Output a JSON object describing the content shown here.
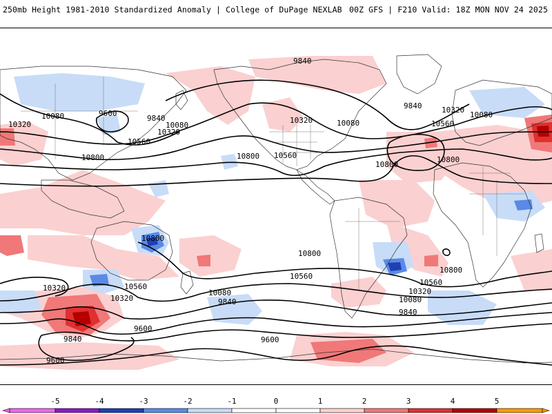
{
  "header": {
    "left": "250mb Height 1981-2010 Standardized Anomaly | College of DuPage NEXLAB",
    "right": "00Z GFS | F210 Valid: 18Z MON NOV 24 2025"
  },
  "colors": {
    "neg5": "#ee66ee",
    "neg4": "#8a1ac4",
    "neg3": "#1f3fb4",
    "neg2": "#5a8ae6",
    "neg1": "#c8dcf8",
    "neutral": "#ffffff",
    "pos1": "#fbd0d0",
    "pos2": "#f07878",
    "pos3": "#e03030",
    "pos4": "#b40000",
    "pos5": "#ff9900",
    "contour": "#000000",
    "coast": "#333333"
  },
  "contour_labels": [
    "9840",
    "9600",
    "9840",
    "10080",
    "10320",
    "10560",
    "10800",
    "10320",
    "10080",
    "10560",
    "10800",
    "10320",
    "10080",
    "9840",
    "10560",
    "10800",
    "10800",
    "10800",
    "10080",
    "10320",
    "10560",
    "10320",
    "10800",
    "10560",
    "10320",
    "10080",
    "9840",
    "9600",
    "9840",
    "9600",
    "9600",
    "10560",
    "10320",
    "10080",
    "9840",
    "10800"
  ],
  "colorbar": {
    "ticks": [
      "-5",
      "-4",
      "-3",
      "-2",
      "-1",
      "0",
      "1",
      "2",
      "3",
      "4",
      "5"
    ]
  }
}
